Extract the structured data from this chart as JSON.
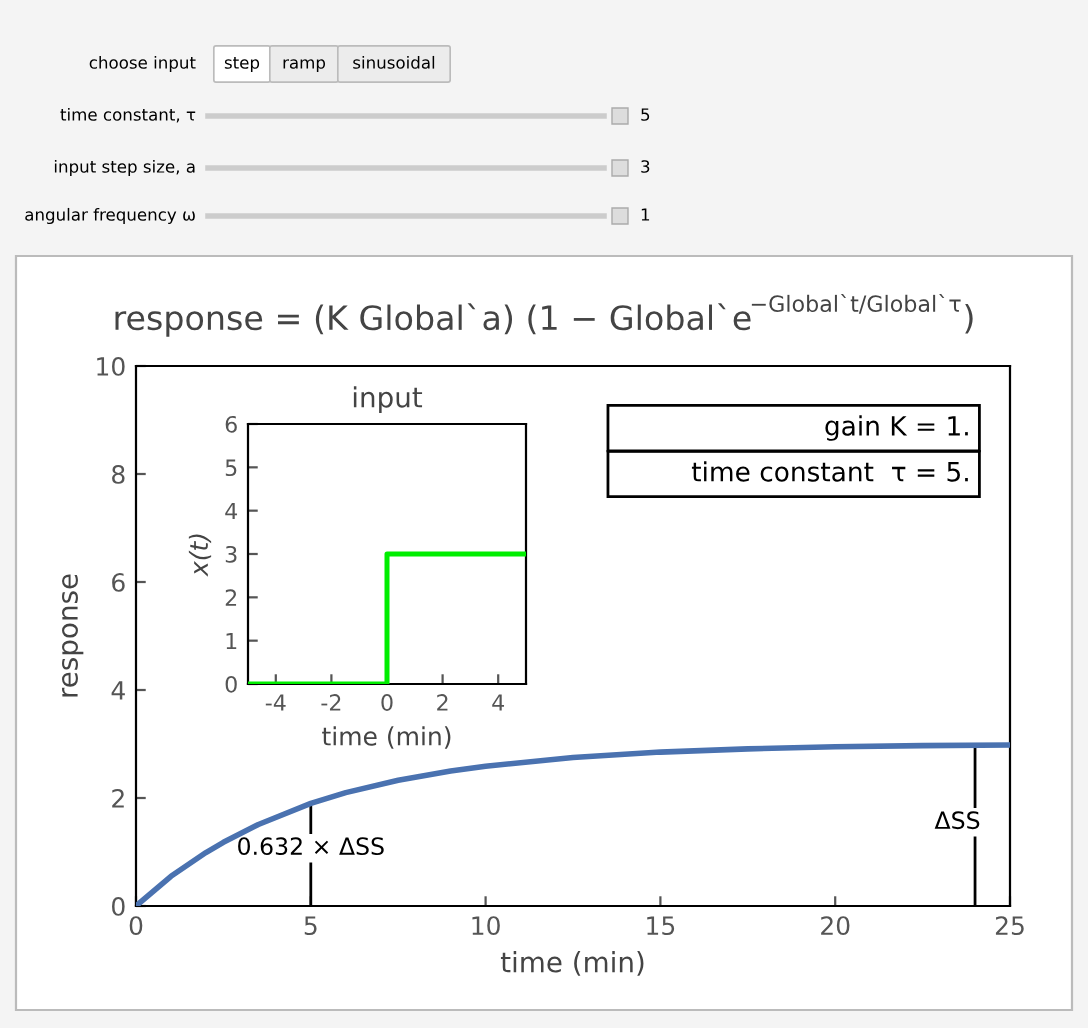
{
  "chart_data": [
    {
      "type": "other",
      "annotations": [
        "choose input",
        "step",
        "ramp",
        "sinusoidal",
        "time constant, τ",
        "5",
        "input step size, a",
        "3",
        "angular frequency ω",
        "1"
      ]
    },
    {
      "type": "line",
      "title": "response = (K Global`a) (1 − Global`e$^{−Global`t/Global`τ}$)",
      "xlabel": "time (min)",
      "ylabel": "response",
      "xlim": [
        0,
        25
      ],
      "ylim": [
        0,
        10
      ],
      "xticks": [
        0,
        5,
        10,
        15,
        20,
        25
      ],
      "yticks": [
        0,
        2,
        4,
        6,
        8,
        10
      ],
      "series": [
        {
          "color": "#4a72b0",
          "x": [
            0,
            1,
            2,
            2.5,
            3.5,
            5,
            6,
            7.5,
            9,
            10,
            12.5,
            15,
            17.5,
            20,
            22.5,
            25
          ],
          "values": [
            0,
            0.55,
            0.99,
            1.18,
            1.51,
            1.9,
            2.1,
            2.33,
            2.5,
            2.59,
            2.75,
            2.85,
            2.91,
            2.95,
            2.97,
            2.98
          ]
        },
        {
          "color": "#000000",
          "x": [
            5,
            5
          ],
          "values": [
            0,
            1.9
          ]
        },
        {
          "color": "#000000",
          "x": [
            24,
            24
          ],
          "values": [
            0,
            2.97
          ]
        }
      ],
      "annotations": [
        {
          "text": "0.632 × ΔSS",
          "x": 5,
          "y": 1.07
        },
        {
          "text": "ΔSS",
          "x": 23.5,
          "y": 1.55
        },
        "gain K = 1.",
        "time constant  τ = 5."
      ]
    },
    {
      "type": "line",
      "title": "input",
      "xlabel": "time (min)",
      "ylabel": "x(t)",
      "xlim": [
        -5,
        5
      ],
      "ylim": [
        0,
        6
      ],
      "xticks": [
        -4,
        -2,
        0,
        2,
        4
      ],
      "yticks": [
        0,
        1,
        2,
        3,
        4,
        5,
        6
      ],
      "series": [
        {
          "color": "#00ee00",
          "x": [
            -5,
            0,
            0,
            5
          ],
          "values": [
            0,
            0,
            3,
            3
          ]
        }
      ]
    }
  ]
}
